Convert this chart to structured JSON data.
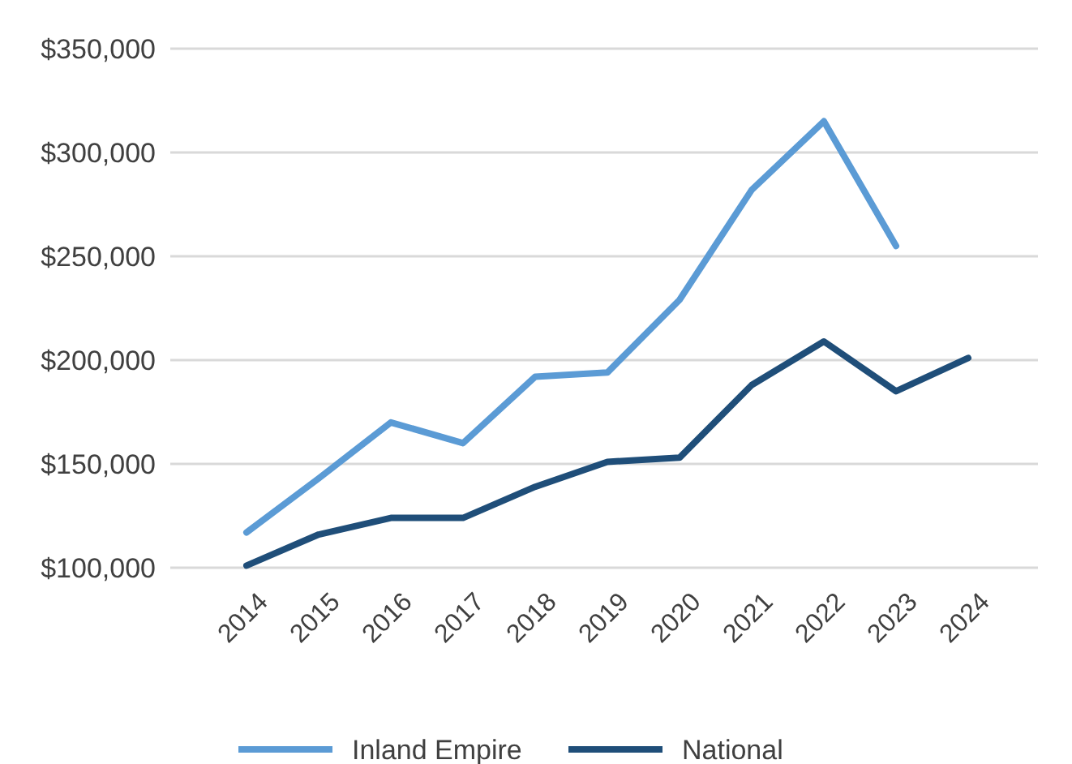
{
  "chart_data": {
    "type": "line",
    "categories": [
      "2014",
      "2015",
      "2016",
      "2017",
      "2018",
      "2019",
      "2020",
      "2021",
      "2022",
      "2023",
      "2024"
    ],
    "series": [
      {
        "name": "Inland Empire",
        "color": "#5b9bd5",
        "values": [
          117000,
          143000,
          170000,
          160000,
          192000,
          194000,
          229000,
          282000,
          315000,
          255000,
          null
        ]
      },
      {
        "name": "National",
        "color": "#1f4e79",
        "values": [
          101000,
          116000,
          124000,
          124000,
          139000,
          151000,
          153000,
          188000,
          209000,
          185000,
          201000
        ]
      }
    ],
    "ylim": [
      100000,
      350000
    ],
    "yticks": [
      {
        "value": 100000,
        "label": "$100,000"
      },
      {
        "value": 150000,
        "label": "$150,000"
      },
      {
        "value": 200000,
        "label": "$200,000"
      },
      {
        "value": 250000,
        "label": "$250,000"
      },
      {
        "value": 300000,
        "label": "$300,000"
      },
      {
        "value": 350000,
        "label": "$350,000"
      }
    ],
    "grid": "y",
    "legend": "bottom",
    "marker": "none",
    "line_style": "solid"
  }
}
